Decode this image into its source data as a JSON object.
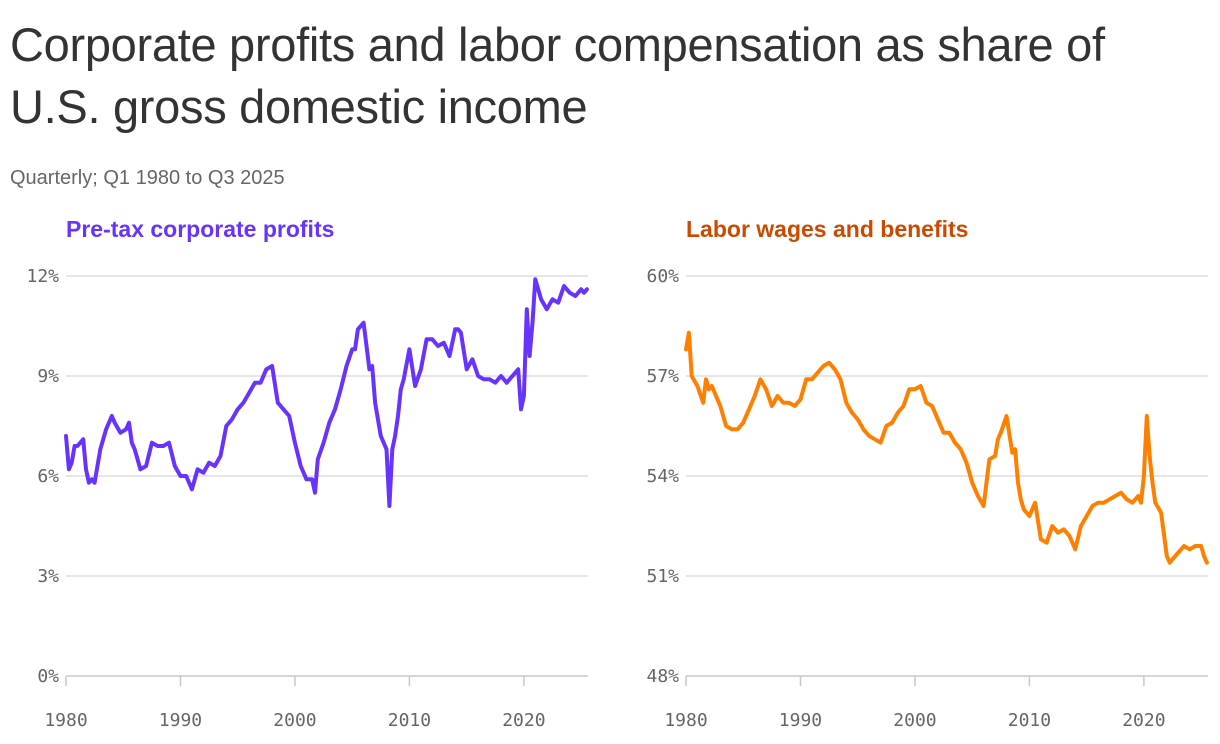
{
  "title": "Corporate profits and labor compensation as share of U.S. gross domestic income",
  "subtitle": "Quarterly; Q1 1980 to Q3 2025",
  "chart_data": [
    {
      "type": "line",
      "title": "Pre-tax corporate profits",
      "color": "#6633ff",
      "ylim": [
        0,
        12
      ],
      "yticks": [
        0,
        3,
        6,
        9,
        12
      ],
      "ytick_labels": [
        "0%",
        "3%",
        "6%",
        "9%",
        "12%"
      ],
      "xlim": [
        1980,
        2025.6
      ],
      "xticks": [
        1980,
        1990,
        2000,
        2010,
        2020
      ],
      "xtick_labels": [
        "1980",
        "1990",
        "2000",
        "2010",
        "2020"
      ],
      "grid": true,
      "series": [
        {
          "x": [
            1980.0,
            1980.25,
            1980.5,
            1980.75,
            1981.0,
            1981.5,
            1981.75,
            1982.0,
            1982.25,
            1982.5,
            1983.0,
            1983.5,
            1984.0,
            1984.25,
            1984.75,
            1985.25,
            1985.5,
            1985.75,
            1986.0,
            1986.5,
            1987.0,
            1987.5,
            1988.0,
            1988.5,
            1989.0,
            1989.5,
            1990.0,
            1990.5,
            1991.0,
            1991.5,
            1992.0,
            1992.5,
            1993.0,
            1993.5,
            1994.0,
            1994.5,
            1995.0,
            1995.5,
            1996.0,
            1996.5,
            1997.0,
            1997.5,
            1998.0,
            1998.5,
            1999.0,
            1999.5,
            2000.0,
            2000.5,
            2001.0,
            2001.5,
            2001.75,
            2002.0,
            2002.5,
            2003.0,
            2003.5,
            2004.0,
            2004.5,
            2005.0,
            2005.25,
            2005.5,
            2006.0,
            2006.5,
            2006.75,
            2007.0,
            2007.5,
            2008.0,
            2008.25,
            2008.5,
            2008.75,
            2009.0,
            2009.25,
            2009.5,
            2010.0,
            2010.5,
            2011.0,
            2011.5,
            2012.0,
            2012.5,
            2013.0,
            2013.5,
            2014.0,
            2014.25,
            2014.5,
            2015.0,
            2015.5,
            2016.0,
            2016.5,
            2017.0,
            2017.5,
            2018.0,
            2018.5,
            2019.0,
            2019.5,
            2019.75,
            2020.0,
            2020.25,
            2020.5,
            2020.75,
            2021.0,
            2021.25,
            2021.5,
            2022.0,
            2022.5,
            2023.0,
            2023.5,
            2024.0,
            2024.5,
            2025.0,
            2025.25,
            2025.5
          ],
          "values": [
            7.2,
            6.2,
            6.4,
            6.9,
            6.9,
            7.1,
            6.2,
            5.8,
            5.9,
            5.8,
            6.8,
            7.4,
            7.8,
            7.6,
            7.3,
            7.4,
            7.6,
            7.0,
            6.8,
            6.2,
            6.3,
            7.0,
            6.9,
            6.9,
            7.0,
            6.3,
            6.0,
            6.0,
            5.6,
            6.2,
            6.1,
            6.4,
            6.3,
            6.6,
            7.5,
            7.7,
            8.0,
            8.2,
            8.5,
            8.8,
            8.8,
            9.2,
            9.3,
            8.2,
            8.0,
            7.8,
            7.0,
            6.3,
            5.9,
            5.9,
            5.5,
            6.5,
            7.0,
            7.6,
            8.0,
            8.6,
            9.3,
            9.8,
            9.8,
            10.4,
            10.6,
            9.2,
            9.3,
            8.2,
            7.2,
            6.8,
            5.1,
            6.8,
            7.2,
            7.8,
            8.6,
            8.9,
            9.8,
            8.7,
            9.2,
            10.1,
            10.1,
            9.9,
            10.0,
            9.6,
            10.4,
            10.4,
            10.3,
            9.2,
            9.5,
            9.0,
            8.9,
            8.9,
            8.8,
            9.0,
            8.8,
            9.0,
            9.2,
            8.0,
            8.4,
            11.0,
            9.6,
            10.6,
            11.9,
            11.6,
            11.3,
            11.0,
            11.3,
            11.2,
            11.7,
            11.5,
            11.4,
            11.6,
            11.5,
            11.6
          ]
        }
      ]
    },
    {
      "type": "line",
      "title": "Labor wages and benefits",
      "color": "#ff7f00",
      "title_color": "#cc4a00",
      "ylim": [
        48,
        60
      ],
      "yticks": [
        48,
        51,
        54,
        57,
        60
      ],
      "ytick_labels": [
        "48%",
        "51%",
        "54%",
        "57%",
        "60%"
      ],
      "xlim": [
        1980,
        2025.6
      ],
      "xticks": [
        1980,
        1990,
        2000,
        2010,
        2020
      ],
      "xtick_labels": [
        "1980",
        "1990",
        "2000",
        "2010",
        "2020"
      ],
      "grid": true,
      "series": [
        {
          "x": [
            1980.0,
            1980.25,
            1980.5,
            1981.0,
            1981.5,
            1981.75,
            1982.0,
            1982.25,
            1983.0,
            1983.5,
            1984.0,
            1984.5,
            1985.0,
            1985.5,
            1986.0,
            1986.5,
            1987.0,
            1987.5,
            1988.0,
            1988.5,
            1989.0,
            1989.5,
            1990.0,
            1990.5,
            1991.0,
            1991.5,
            1992.0,
            1992.5,
            1993.0,
            1993.5,
            1994.0,
            1994.5,
            1995.0,
            1995.5,
            1996.0,
            1996.5,
            1997.0,
            1997.5,
            1998.0,
            1998.5,
            1999.0,
            1999.5,
            2000.0,
            2000.5,
            2001.0,
            2001.5,
            2001.75,
            2002.0,
            2002.5,
            2003.0,
            2003.5,
            2004.0,
            2004.5,
            2005.0,
            2005.5,
            2006.0,
            2006.5,
            2007.0,
            2007.25,
            2007.5,
            2008.0,
            2008.5,
            2008.75,
            2009.0,
            2009.25,
            2009.5,
            2010.0,
            2010.5,
            2011.0,
            2011.5,
            2012.0,
            2012.5,
            2013.0,
            2013.5,
            2014.0,
            2014.5,
            2015.0,
            2015.5,
            2016.0,
            2016.5,
            2017.0,
            2017.5,
            2018.0,
            2018.5,
            2019.0,
            2019.5,
            2019.75,
            2020.0,
            2020.25,
            2020.5,
            2020.75,
            2021.0,
            2021.5,
            2022.0,
            2022.25,
            2022.5,
            2023.0,
            2023.5,
            2024.0,
            2024.5,
            2025.0,
            2025.25,
            2025.5
          ],
          "values": [
            57.8,
            58.3,
            57.0,
            56.7,
            56.2,
            56.9,
            56.6,
            56.7,
            56.1,
            55.5,
            55.4,
            55.4,
            55.6,
            56.0,
            56.4,
            56.9,
            56.6,
            56.1,
            56.4,
            56.2,
            56.2,
            56.1,
            56.3,
            56.9,
            56.9,
            57.1,
            57.3,
            57.4,
            57.2,
            56.9,
            56.2,
            55.9,
            55.7,
            55.4,
            55.2,
            55.1,
            55.0,
            55.5,
            55.6,
            55.9,
            56.1,
            56.6,
            56.6,
            56.7,
            56.2,
            56.1,
            55.9,
            55.7,
            55.3,
            55.3,
            55.0,
            54.8,
            54.4,
            53.8,
            53.4,
            53.1,
            54.5,
            54.6,
            55.1,
            55.3,
            55.8,
            54.7,
            54.8,
            53.8,
            53.3,
            53.0,
            52.8,
            53.2,
            52.1,
            52.0,
            52.5,
            52.3,
            52.4,
            52.2,
            51.8,
            52.5,
            52.8,
            53.1,
            53.2,
            53.2,
            53.3,
            53.4,
            53.5,
            53.3,
            53.2,
            53.4,
            53.2,
            54.0,
            55.8,
            54.6,
            53.8,
            53.2,
            52.9,
            51.6,
            51.4,
            51.5,
            51.7,
            51.9,
            51.8,
            51.9,
            51.9,
            51.6,
            51.4
          ]
        }
      ]
    }
  ]
}
